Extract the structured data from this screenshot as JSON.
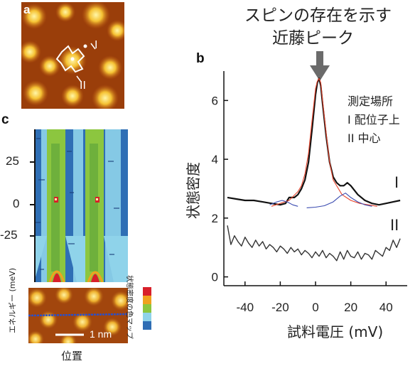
{
  "annotation": {
    "line1": "スピンの存在を示す",
    "line2": "近藤ピーク"
  },
  "panel_labels": {
    "a": "a",
    "b": "b",
    "c": "c"
  },
  "panel_a": {
    "marker_1": "I",
    "marker_2": "II"
  },
  "panel_c": {
    "y_ticks": [
      "25",
      "0",
      "-25"
    ],
    "y_label": "エネルギー (meV)",
    "x_label": "位置",
    "scalebar_label": "1 nm",
    "colorbar_label": "状態密度の色マップ",
    "colorbar_colors": [
      "#d8202a",
      "#f0a21e",
      "#8cc63f",
      "#8fd3ea",
      "#2e6db4"
    ]
  },
  "chart_data": {
    "type": "line",
    "title": "",
    "xlabel": "試料電圧 (mV)",
    "ylabel": "状態密度",
    "xlim": [
      -52,
      52
    ],
    "ylim": [
      -0.3,
      7.0
    ],
    "x_ticks": [
      -40,
      -20,
      0,
      20,
      40
    ],
    "y_ticks": [
      0,
      2,
      4,
      6
    ],
    "x_tick_labels": [
      "-40",
      "-20",
      "0",
      "20",
      "40"
    ],
    "y_tick_labels": [
      "0",
      "2",
      "4",
      "6"
    ],
    "legend": {
      "title": "測定場所",
      "entries": [
        "I 配位子上",
        "II 中心"
      ]
    },
    "series": [
      {
        "name": "I",
        "color": "#111111",
        "x": [
          -50,
          -45,
          -40,
          -35,
          -30,
          -25,
          -20,
          -17,
          -15,
          -12,
          -10,
          -8,
          -6,
          -4,
          -2,
          0,
          1,
          2,
          3,
          4,
          6,
          8,
          10,
          12,
          14,
          16,
          18,
          20,
          24,
          28,
          32,
          36,
          40,
          44,
          48
        ],
        "y": [
          2.7,
          2.65,
          2.6,
          2.6,
          2.55,
          2.5,
          2.45,
          2.5,
          2.7,
          2.7,
          2.8,
          3.0,
          3.3,
          3.9,
          5.0,
          6.2,
          6.6,
          6.75,
          6.5,
          5.9,
          4.8,
          3.9,
          3.4,
          3.2,
          3.1,
          3.1,
          3.2,
          3.1,
          2.8,
          2.6,
          2.5,
          2.45,
          2.5,
          2.55,
          2.6
        ]
      },
      {
        "name": "II",
        "color": "#333333",
        "x": [
          -50,
          -48,
          -46,
          -44,
          -42,
          -40,
          -38,
          -36,
          -34,
          -32,
          -30,
          -28,
          -26,
          -24,
          -22,
          -20,
          -18,
          -16,
          -14,
          -12,
          -10,
          -8,
          -6,
          -4,
          -2,
          0,
          2,
          4,
          6,
          8,
          10,
          12,
          14,
          16,
          18,
          20,
          22,
          24,
          26,
          28,
          30,
          32,
          34,
          36,
          38,
          40,
          42,
          44,
          46,
          48
        ],
        "y": [
          1.75,
          1.1,
          1.4,
          1.2,
          1.05,
          1.35,
          1.15,
          1.0,
          1.25,
          1.05,
          1.2,
          0.95,
          1.1,
          1.0,
          0.85,
          1.05,
          0.95,
          0.8,
          1.0,
          0.85,
          0.95,
          0.75,
          0.9,
          0.8,
          0.65,
          0.85,
          0.7,
          0.9,
          0.65,
          0.8,
          0.7,
          0.55,
          0.85,
          0.6,
          0.9,
          0.7,
          0.65,
          0.85,
          0.6,
          0.8,
          0.75,
          0.6,
          0.9,
          0.8,
          0.7,
          1.0,
          0.9,
          1.25,
          1.0,
          1.3
        ]
      },
      {
        "name": "",
        "color": "#e8452c",
        "x": [
          -25,
          -20,
          -15,
          -10,
          -8,
          -6,
          -4,
          -2,
          0,
          1,
          2,
          3,
          4,
          6,
          8,
          10,
          15,
          20,
          25,
          30,
          35
        ],
        "y": [
          2.4,
          2.5,
          2.6,
          2.9,
          3.1,
          3.5,
          4.2,
          5.3,
          6.4,
          6.65,
          6.75,
          6.6,
          6.0,
          4.9,
          3.9,
          3.3,
          2.8,
          2.6,
          2.5,
          2.45,
          2.4
        ]
      },
      {
        "name": "",
        "color": "#3a4bb0",
        "x": [
          -26,
          -22,
          -19,
          -16,
          -13,
          -10
        ],
        "y": [
          2.45,
          2.55,
          2.6,
          2.55,
          2.45,
          2.4
        ]
      },
      {
        "name": "",
        "color": "#3a4bb0",
        "x": [
          -5,
          0,
          5,
          10,
          14,
          17,
          20,
          24,
          28,
          32
        ],
        "y": [
          2.35,
          2.37,
          2.42,
          2.55,
          2.75,
          2.85,
          2.7,
          2.55,
          2.45,
          2.4
        ]
      }
    ],
    "series_labels": [
      "I",
      "II"
    ]
  }
}
